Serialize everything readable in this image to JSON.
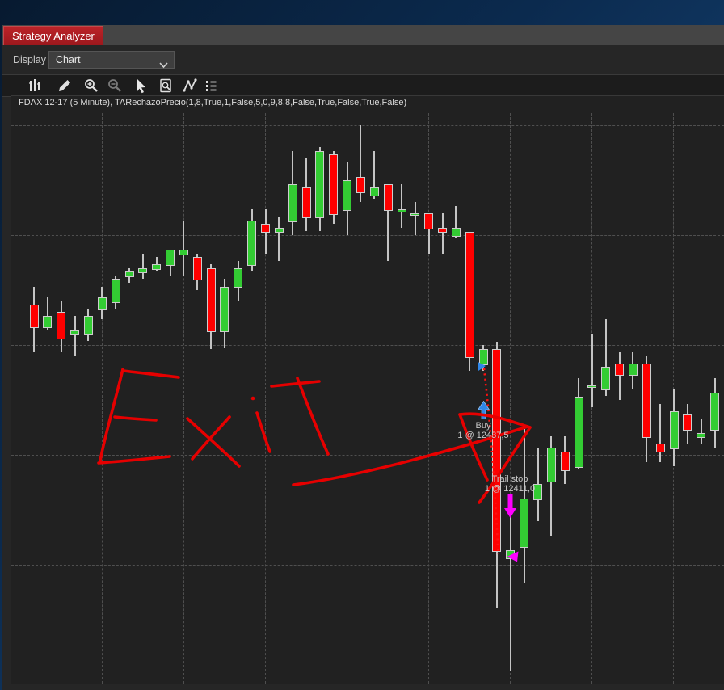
{
  "window": {
    "tab": {
      "label": "Strategy Analyzer"
    },
    "display_row": {
      "label": "Display",
      "value": "Chart"
    },
    "toolbar_icons": [
      {
        "name": "chart-bars-icon"
      },
      {
        "name": "pencil-icon"
      },
      {
        "name": "zoom-in-icon"
      },
      {
        "name": "zoom-out-icon"
      },
      {
        "name": "cursor-icon"
      },
      {
        "name": "analyzer-report-icon"
      },
      {
        "name": "zigzag-line-icon"
      },
      {
        "name": "list-icon"
      }
    ]
  },
  "chart": {
    "series_label": "FDAX 12-17 (5 Minute), TARechazoPrecio(1,8,True,1,False,5,0,9,8,8,False,True,False,True,False)"
  },
  "trade_markers": {
    "entry": {
      "label": "Buy",
      "detail": "1 @ 12437,5",
      "arrow_color": "#2f87e8"
    },
    "exit": {
      "label": "Trail stop",
      "detail": "1 @ 12411,0",
      "arrow_color": "#ff00ff"
    }
  },
  "annotations": {
    "handwritten_text": "Exit",
    "color": "#e60000"
  },
  "colors": {
    "up": "#33cc33",
    "down": "#ff0000",
    "wick": "#c4c4c4",
    "grid": "#4f4f4f",
    "chart_bg": "#212121",
    "tab_red": "#a81c21",
    "entry_blue": "#2f87e8",
    "exit_magenta": "#ff00ff",
    "drawing_red": "#e60000"
  },
  "chart_data": {
    "type": "candlestick",
    "title": "FDAX 12-17 (5 Minute), TARechazoPrecio(1,8,True,1,False,5,0,9,8,8,False,True,False,True,False)",
    "instrument": "FDAX 12-17",
    "interval": "5 Minute",
    "strategy": "TARechazoPrecio(1,8,True,1,False,5,0,9,8,8,False,True,False,True,False)",
    "grid": true,
    "legend": false,
    "price_gridlines": [
      12470,
      12455,
      12440,
      12425,
      12410,
      12395
    ],
    "ylim": [
      12393,
      12472
    ],
    "trades": [
      {
        "action": "Buy",
        "quantity": 1,
        "price": "12437,5"
      },
      {
        "action": "Trail stop exit",
        "quantity": 1,
        "price": "12411,0"
      }
    ],
    "candles": [
      [
        12445.5,
        12448,
        12439,
        12442.5
      ],
      [
        12442.5,
        12446.5,
        12442,
        12444
      ],
      [
        12444.5,
        12446,
        12439,
        12441
      ],
      [
        12441.5,
        12444,
        12438.5,
        12442
      ],
      [
        12441.5,
        12445,
        12440.5,
        12444
      ],
      [
        12445,
        12448,
        12443.5,
        12446.5
      ],
      [
        12446,
        12449.5,
        12445,
        12449
      ],
      [
        12449.5,
        12450.5,
        12448.5,
        12450
      ],
      [
        12450,
        12452.5,
        12449,
        12450.5
      ],
      [
        12450.5,
        12452,
        12450,
        12451
      ],
      [
        12451,
        12453,
        12449.5,
        12453
      ],
      [
        12452.5,
        12457,
        12449.5,
        12453
      ],
      [
        12452,
        12452.5,
        12447.5,
        12449
      ],
      [
        12450.5,
        12451,
        12439.5,
        12442
      ],
      [
        12442,
        12449,
        12439.5,
        12448
      ],
      [
        12448,
        12451.5,
        12446,
        12450.5
      ],
      [
        12451,
        12458.5,
        12450,
        12457
      ],
      [
        12456.5,
        12458.5,
        12452.5,
        12455.5
      ],
      [
        12455.5,
        12457.5,
        12451.5,
        12456
      ],
      [
        12457,
        12466.5,
        12455,
        12462
      ],
      [
        12461.5,
        12465.5,
        12455.5,
        12457.5
      ],
      [
        12457.5,
        12467,
        12455.5,
        12466.5
      ],
      [
        12466,
        12466.5,
        12456.5,
        12458
      ],
      [
        12458.5,
        12465,
        12455,
        12462.5
      ],
      [
        12463,
        12470,
        12459.5,
        12461
      ],
      [
        12460.5,
        12466.5,
        12460,
        12461.5
      ],
      [
        12462,
        12462,
        12451.5,
        12458.5
      ],
      [
        12458.5,
        12462,
        12456,
        12458.5
      ],
      [
        12458,
        12459.5,
        12455,
        12458
      ],
      [
        12458,
        12458,
        12452.5,
        12456
      ],
      [
        12456,
        12458,
        12452.5,
        12455.5
      ],
      [
        12455,
        12459,
        12454.5,
        12456
      ],
      [
        12455.5,
        12455.5,
        12436.5,
        12438.5
      ],
      [
        12437.5,
        12440,
        12436.5,
        12439.5
      ],
      [
        12439.5,
        12440.5,
        12404,
        12412
      ],
      [
        12411,
        12418,
        12395.5,
        12412
      ],
      [
        12412.5,
        12428.5,
        12407.5,
        12419
      ],
      [
        12419,
        12426,
        12416,
        12421
      ],
      [
        12421.5,
        12427.5,
        12414,
        12426
      ],
      [
        12425.5,
        12427.5,
        12421,
        12423
      ],
      [
        12423.5,
        12435.5,
        12423,
        12433
      ],
      [
        12434.5,
        12441.5,
        12431.5,
        12434.5
      ],
      [
        12434,
        12443.5,
        12433,
        12437
      ],
      [
        12437.5,
        12439,
        12432.5,
        12436
      ],
      [
        12436,
        12439,
        12434,
        12437.5
      ],
      [
        12437.5,
        12438.5,
        12424,
        12427.5
      ],
      [
        12426.5,
        12432,
        12424,
        12425.5
      ],
      [
        12426,
        12434,
        12423.5,
        12431
      ],
      [
        12430.5,
        12432,
        12426.5,
        12428.5
      ],
      [
        12427.5,
        12430,
        12426.5,
        12428
      ],
      [
        12428.5,
        12435.5,
        12426,
        12433.5
      ],
      [
        12434,
        12437,
        12433,
        12436.5
      ]
    ]
  }
}
